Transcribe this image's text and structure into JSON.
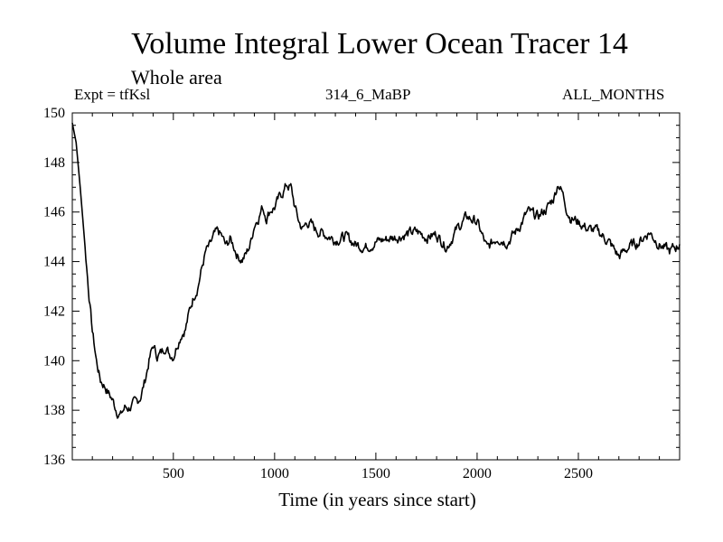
{
  "chart_data": {
    "type": "line",
    "title": "Volume Integral Lower Ocean Tracer 14",
    "subtitle": "Whole area",
    "experiment": "Expt = tfKsl",
    "run_label": "314_6_MaBP",
    "period": "ALL_MONTHS",
    "xlabel": "Time (in years since start)",
    "ylabel": "",
    "xlim": [
      1,
      3000
    ],
    "ylim": [
      136,
      150
    ],
    "xticks": [
      500,
      1000,
      1500,
      2000,
      2500
    ],
    "yticks": [
      136,
      138,
      140,
      142,
      144,
      146,
      148,
      150
    ],
    "grid": false,
    "series": [
      {
        "name": "Lower Ocean Tracer 14",
        "color": "#000000",
        "x": [
          1,
          20,
          40,
          60,
          80,
          100,
          120,
          140,
          160,
          180,
          200,
          220,
          240,
          260,
          280,
          300,
          320,
          340,
          360,
          380,
          400,
          420,
          440,
          460,
          480,
          500,
          520,
          540,
          560,
          580,
          600,
          620,
          640,
          660,
          680,
          700,
          720,
          740,
          760,
          780,
          800,
          820,
          840,
          860,
          880,
          900,
          920,
          940,
          960,
          980,
          1000,
          1020,
          1040,
          1060,
          1080,
          1100,
          1120,
          1140,
          1160,
          1180,
          1200,
          1250,
          1300,
          1350,
          1400,
          1450,
          1500,
          1550,
          1600,
          1650,
          1700,
          1750,
          1800,
          1850,
          1900,
          1950,
          2000,
          2050,
          2100,
          2150,
          2200,
          2250,
          2300,
          2350,
          2380,
          2400,
          2420,
          2440,
          2460,
          2500,
          2550,
          2600,
          2650,
          2700,
          2750,
          2800,
          2850,
          2900,
          2950,
          3000
        ],
        "values": [
          149.6,
          148.8,
          147.0,
          145.0,
          143.0,
          141.2,
          140.0,
          139.2,
          139.0,
          138.7,
          138.4,
          138.0,
          137.8,
          138.1,
          138.1,
          138.2,
          138.3,
          138.6,
          139.2,
          140.0,
          140.6,
          140.2,
          140.3,
          140.6,
          140.3,
          140.2,
          140.7,
          141.1,
          141.3,
          142.0,
          142.6,
          143.0,
          143.7,
          144.4,
          144.6,
          145.0,
          145.2,
          145.0,
          144.6,
          144.9,
          144.6,
          144.2,
          144.1,
          144.3,
          144.7,
          145.5,
          145.8,
          146.2,
          145.8,
          146.1,
          146.2,
          146.5,
          146.8,
          147.1,
          147.0,
          146.2,
          145.6,
          145.3,
          145.6,
          145.5,
          145.3,
          145.1,
          144.9,
          145.0,
          144.7,
          144.6,
          144.8,
          144.9,
          145.0,
          145.1,
          145.2,
          145.0,
          145.1,
          144.6,
          145.3,
          145.8,
          145.6,
          144.5,
          145.0,
          144.8,
          145.3,
          146.0,
          145.8,
          146.2,
          146.6,
          147.2,
          146.8,
          146.2,
          145.8,
          145.6,
          145.3,
          145.2,
          144.8,
          144.2,
          144.6,
          144.8,
          145.2,
          144.7,
          144.4,
          144.7
        ]
      }
    ]
  }
}
